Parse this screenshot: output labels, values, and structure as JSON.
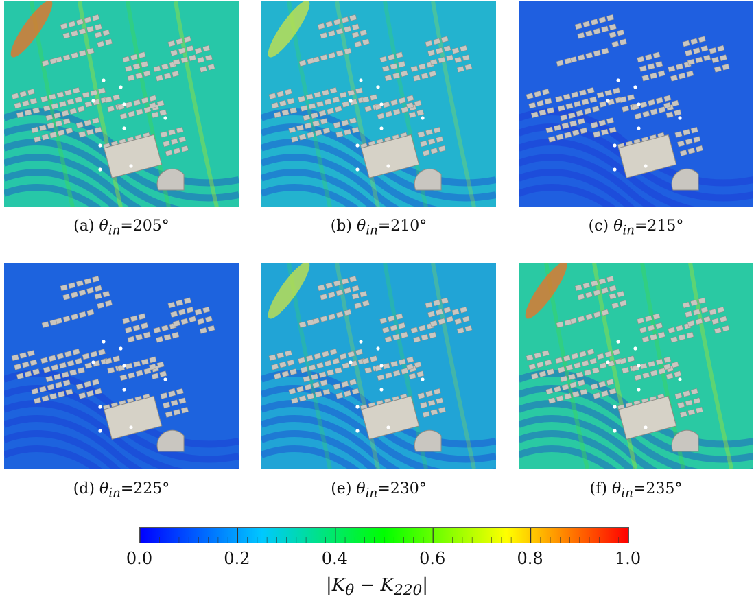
{
  "panels": [
    {
      "id": "a",
      "caption_prefix": "(a) ",
      "theta": "205°",
      "bg": "#27c7a8",
      "level": 0.45
    },
    {
      "id": "b",
      "caption_prefix": "(b) ",
      "theta": "210°",
      "bg": "#23b3cf",
      "level": 0.3
    },
    {
      "id": "c",
      "caption_prefix": "(c) ",
      "theta": "215°",
      "bg": "#1f5fe0",
      "level": 0.15
    },
    {
      "id": "d",
      "caption_prefix": "(d) ",
      "theta": "225°",
      "bg": "#1d63de",
      "level": 0.15
    },
    {
      "id": "e",
      "caption_prefix": "(e) ",
      "theta": "230°",
      "bg": "#21a4d6",
      "level": 0.28
    },
    {
      "id": "f",
      "caption_prefix": "(f) ",
      "theta": "235°",
      "bg": "#2ac9a3",
      "level": 0.45
    }
  ],
  "theta_symbol": "θ",
  "theta_sub": "in",
  "colorbar": {
    "ticks": [
      "0.0",
      "0.2",
      "0.4",
      "0.6",
      "0.8",
      "1.0"
    ],
    "title": "|Kθ − K220|",
    "colors": [
      "#0000ff",
      "#00c8ff",
      "#00ff00",
      "#ffff00",
      "#ff0000"
    ]
  }
}
